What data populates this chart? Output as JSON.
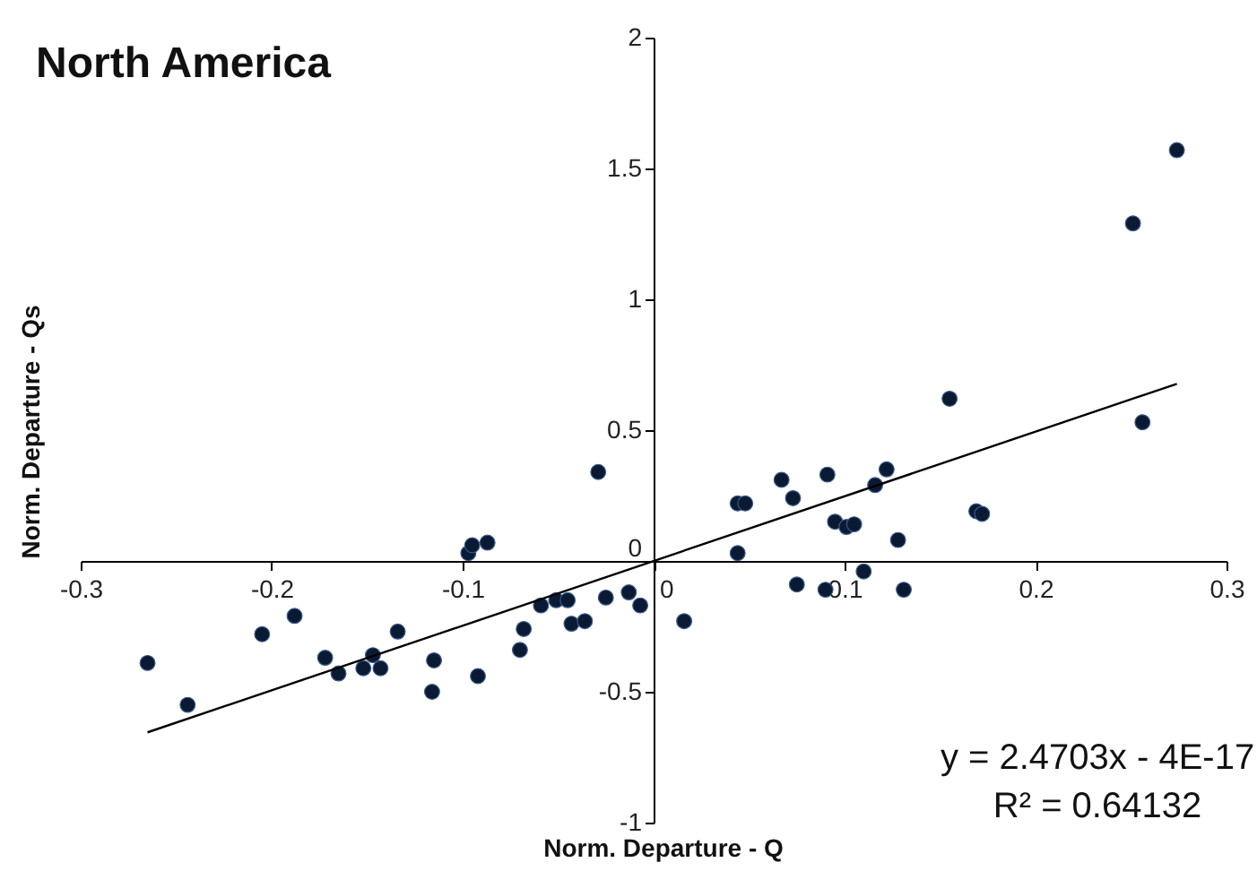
{
  "chart_data": {
    "type": "scatter",
    "title": "North America",
    "xlabel": "Norm. Departure - Q",
    "ylabel": "Norm. Departure - Qs",
    "annotations": [
      "y = 2.4703x - 4E-17",
      "R² = 0.64132"
    ],
    "xlim": [
      -0.3,
      0.3
    ],
    "xticks": [
      -0.3,
      -0.2,
      -0.1,
      0,
      0.1,
      0.2,
      0.3
    ],
    "ylim": [
      -1,
      2
    ],
    "yticks": [
      -1,
      -0.5,
      0,
      0.5,
      1,
      1.5,
      2
    ],
    "series": [
      {
        "type": "scatter",
        "marker": "circle",
        "color": "#0b1a33",
        "x": [
          -0.265,
          -0.244,
          -0.205,
          -0.188,
          -0.172,
          -0.165,
          -0.152,
          -0.147,
          -0.143,
          -0.134,
          -0.116,
          -0.115,
          -0.097,
          -0.095,
          -0.087,
          -0.092,
          -0.07,
          -0.068,
          -0.059,
          -0.051,
          -0.045,
          -0.043,
          -0.036,
          -0.029,
          -0.025,
          -0.013,
          -0.007,
          0.016,
          0.044,
          0.048,
          0.044,
          0.067,
          0.073,
          0.075,
          0.091,
          0.09,
          0.095,
          0.101,
          0.105,
          0.11,
          0.116,
          0.122,
          0.128,
          0.131,
          0.169,
          0.172,
          0.256,
          0.155,
          0.251,
          0.274
        ],
        "values": [
          -0.39,
          -0.55,
          -0.28,
          -0.21,
          -0.37,
          -0.43,
          -0.41,
          -0.36,
          -0.41,
          -0.27,
          -0.5,
          -0.38,
          0.03,
          0.06,
          0.07,
          -0.44,
          -0.34,
          -0.26,
          -0.17,
          -0.15,
          -0.15,
          -0.24,
          -0.23,
          0.34,
          -0.14,
          -0.12,
          -0.17,
          -0.23,
          0.22,
          0.22,
          0.03,
          0.31,
          0.24,
          -0.09,
          0.33,
          -0.11,
          0.15,
          0.13,
          0.14,
          -0.04,
          0.29,
          0.35,
          0.08,
          -0.11,
          0.19,
          0.18,
          0.53,
          0.62,
          1.29,
          1.57
        ]
      },
      {
        "type": "line",
        "color": "#000000",
        "x": [
          -0.265,
          0.274
        ],
        "values": [
          -0.655,
          0.677
        ]
      }
    ]
  }
}
